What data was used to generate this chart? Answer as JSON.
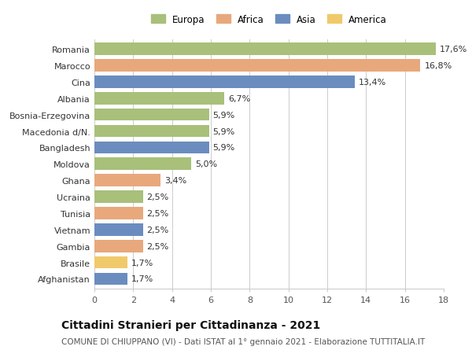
{
  "countries": [
    "Romania",
    "Marocco",
    "Cina",
    "Albania",
    "Bosnia-Erzegovina",
    "Macedonia d/N.",
    "Bangladesh",
    "Moldova",
    "Ghana",
    "Ucraina",
    "Tunisia",
    "Vietnam",
    "Gambia",
    "Brasile",
    "Afghanistan"
  ],
  "values": [
    17.6,
    16.8,
    13.4,
    6.7,
    5.9,
    5.9,
    5.9,
    5.0,
    3.4,
    2.5,
    2.5,
    2.5,
    2.5,
    1.7,
    1.7
  ],
  "labels": [
    "17,6%",
    "16,8%",
    "13,4%",
    "6,7%",
    "5,9%",
    "5,9%",
    "5,9%",
    "5,0%",
    "3,4%",
    "2,5%",
    "2,5%",
    "2,5%",
    "2,5%",
    "1,7%",
    "1,7%"
  ],
  "continents": [
    "Europa",
    "Africa",
    "Asia",
    "Europa",
    "Europa",
    "Europa",
    "Asia",
    "Europa",
    "Africa",
    "Europa",
    "Africa",
    "Asia",
    "Africa",
    "America",
    "Asia"
  ],
  "continent_colors": {
    "Europa": "#a8c07a",
    "Africa": "#e8a87c",
    "Asia": "#6b8cbf",
    "America": "#f0c96b"
  },
  "legend_order": [
    "Europa",
    "Africa",
    "Asia",
    "America"
  ],
  "xlim": [
    0,
    18
  ],
  "xticks": [
    0,
    2,
    4,
    6,
    8,
    10,
    12,
    14,
    16,
    18
  ],
  "title": "Cittadini Stranieri per Cittadinanza - 2021",
  "subtitle": "COMUNE DI CHIUPPANO (VI) - Dati ISTAT al 1° gennaio 2021 - Elaborazione TUTTITALIA.IT",
  "background_color": "#ffffff",
  "grid_color": "#cccccc",
  "bar_height": 0.75,
  "label_fontsize": 8,
  "title_fontsize": 10,
  "subtitle_fontsize": 7.5,
  "ytick_fontsize": 8,
  "xtick_fontsize": 8
}
